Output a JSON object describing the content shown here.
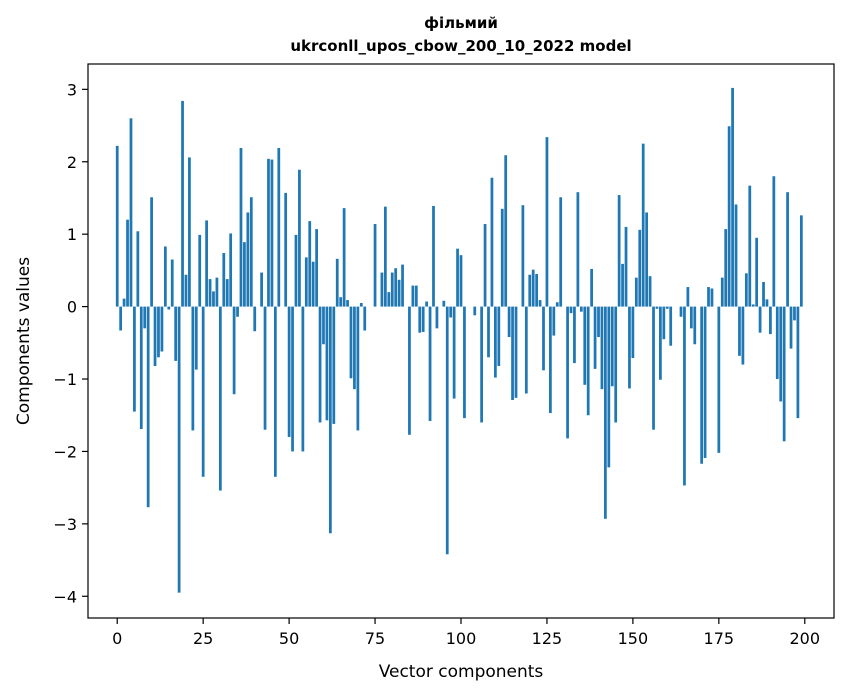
{
  "chart_data": {
    "type": "bar",
    "title": "фільмий",
    "subtitle": "ukrconll_upos_cbow_200_10_2022 model",
    "xlabel": "Vector components",
    "ylabel": "Components values",
    "xlim": [
      -8.5,
      208.5
    ],
    "ylim": [
      -4.3,
      3.35
    ],
    "xticks": [
      0,
      25,
      50,
      75,
      100,
      125,
      150,
      175,
      200
    ],
    "yticks": [
      -4,
      -3,
      -2,
      -1,
      0,
      1,
      2,
      3
    ],
    "grid": false,
    "bar_color": "#1f77b4",
    "values": [
      2.22,
      -0.33,
      0.11,
      1.2,
      2.6,
      -1.45,
      1.04,
      -1.69,
      -0.3,
      -2.77,
      1.51,
      -0.82,
      -0.7,
      -0.62,
      0.83,
      -0.04,
      0.65,
      -0.75,
      -3.95,
      2.84,
      0.44,
      2.06,
      -1.71,
      -0.87,
      0.99,
      -2.35,
      1.19,
      0.38,
      0.21,
      0.4,
      -2.54,
      0.74,
      0.38,
      1.01,
      -1.21,
      -0.14,
      2.19,
      0.89,
      1.3,
      1.51,
      -0.34,
      0.0,
      0.47,
      -1.7,
      2.04,
      2.03,
      -2.35,
      2.19,
      0.0,
      1.57,
      -1.8,
      -2.0,
      0.99,
      1.89,
      -2.0,
      0.68,
      1.18,
      0.62,
      1.07,
      -1.6,
      -0.52,
      -1.57,
      -3.13,
      -1.62,
      0.66,
      0.13,
      1.36,
      0.09,
      -0.99,
      -1.14,
      -1.71,
      0.05,
      -0.33,
      0.0,
      0.0,
      1.14,
      0.0,
      0.47,
      1.38,
      0.2,
      0.47,
      0.53,
      0.37,
      0.58,
      0.0,
      -1.77,
      0.29,
      0.29,
      -0.36,
      -0.35,
      0.07,
      -1.58,
      1.39,
      -0.3,
      0.0,
      0.08,
      -3.42,
      -0.15,
      -1.27,
      0.8,
      0.71,
      -1.54,
      0.0,
      0.0,
      -0.12,
      0.0,
      -1.6,
      1.14,
      -0.7,
      1.78,
      -0.98,
      -0.82,
      1.35,
      2.09,
      -0.42,
      -1.29,
      -1.26,
      0.0,
      1.4,
      -1.2,
      0.44,
      0.51,
      0.45,
      0.09,
      -0.88,
      2.34,
      -1.47,
      -0.4,
      0.06,
      1.51,
      0.0,
      -1.82,
      -0.09,
      -0.78,
      1.58,
      -0.07,
      -1.08,
      -1.5,
      0.52,
      -0.86,
      -0.42,
      -1.14,
      -2.93,
      -2.22,
      -1.1,
      -1.6,
      1.54,
      0.59,
      1.1,
      -1.13,
      -0.71,
      0.4,
      1.06,
      2.25,
      1.3,
      0.42,
      -1.7,
      -0.03,
      -1.01,
      -0.45,
      -0.03,
      -0.54,
      0.0,
      0.0,
      -0.14,
      -2.47,
      0.27,
      -0.3,
      -0.52,
      0.0,
      -2.17,
      -2.09,
      0.27,
      0.25,
      0.0,
      -2.02,
      0.4,
      1.07,
      2.49,
      3.02,
      1.41,
      -0.68,
      -0.8,
      0.46,
      1.67,
      0.03,
      0.95,
      -0.36,
      0.34,
      0.1,
      -0.38,
      1.8,
      -1.0,
      -1.31,
      -1.86,
      1.58,
      -0.58,
      -0.19,
      -1.54,
      1.26
    ]
  }
}
